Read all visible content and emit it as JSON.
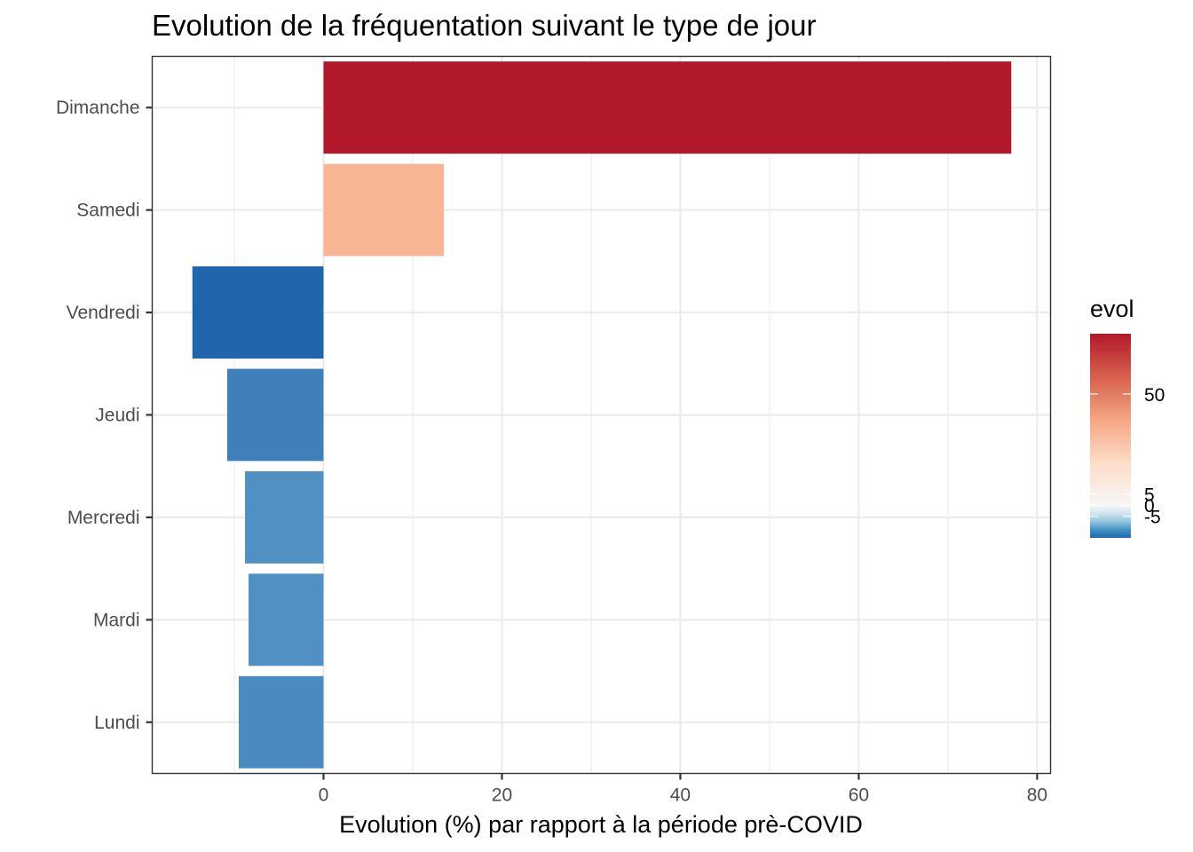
{
  "chart_data": {
    "type": "bar",
    "orientation": "horizontal",
    "title": "Evolution de la fréquentation suivant le type de jour",
    "xlabel": "Evolution (%) par rapport à la période prè-COVID",
    "ylabel": "",
    "categories": [
      "Dimanche",
      "Samedi",
      "Vendredi",
      "Jeudi",
      "Mercredi",
      "Mardi",
      "Lundi"
    ],
    "values": [
      77.1,
      13.5,
      -14.7,
      -10.8,
      -8.8,
      -8.4,
      -9.5
    ],
    "colors": [
      "#b2182b",
      "#f8b596",
      "#2166ac",
      "#4080ba",
      "#5090c3",
      "#5090c3",
      "#4a8ac0"
    ],
    "xlim": [
      -19.2,
      81.5
    ],
    "xticks": [
      0,
      20,
      40,
      60,
      80
    ],
    "xtick_labels": [
      "0",
      "20",
      "40",
      "60",
      "80"
    ],
    "grid": true,
    "theme": "bw",
    "legend": {
      "title": "evol",
      "placement": "right",
      "type": "colorbar",
      "range": [
        -14.7,
        77.1
      ],
      "breaks": [
        50,
        5,
        0,
        -5
      ],
      "break_labels": [
        "50",
        "5",
        "0",
        "-5"
      ],
      "palette": [
        "#2166ac",
        "#4393c3",
        "#92c5de",
        "#d1e5f0",
        "#f7f7f7",
        "#fddbc7",
        "#f4a582",
        "#d6604d",
        "#b2182b"
      ],
      "palette_midpoint": 0
    }
  }
}
